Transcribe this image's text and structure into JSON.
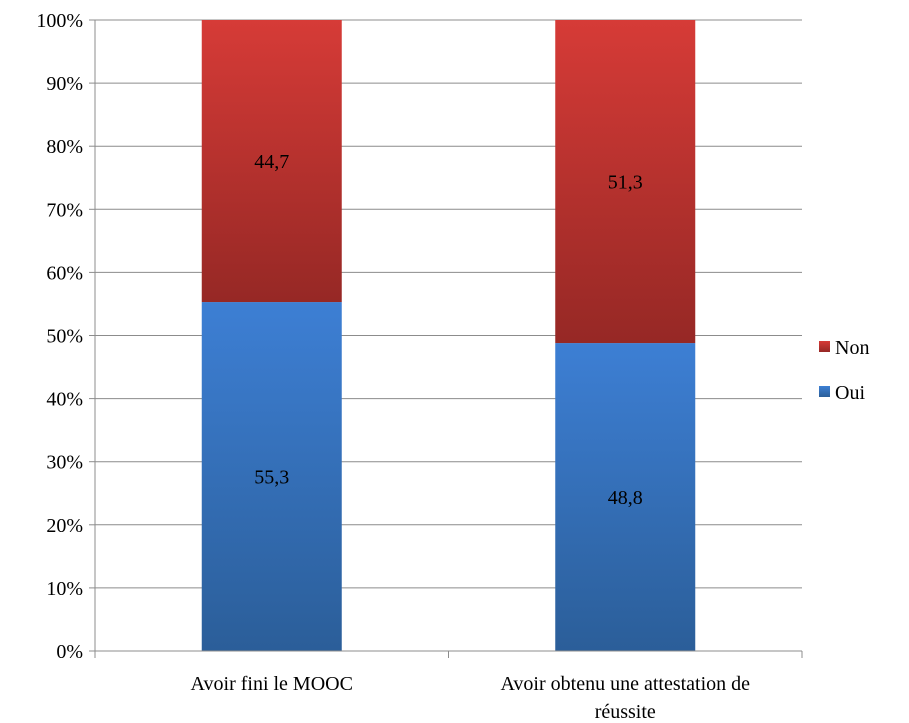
{
  "chart_data": {
    "type": "bar",
    "stacked": true,
    "percent_stacked": true,
    "categories": [
      "Avoir fini le MOOC",
      "Avoir obtenu une attestation de réussite"
    ],
    "category_lines": [
      [
        "Avoir fini le MOOC"
      ],
      [
        "Avoir obtenu une attestation de",
        "réussite"
      ]
    ],
    "series": [
      {
        "name": "Oui",
        "values": [
          55.3,
          48.8
        ],
        "labels": [
          "55,3",
          "48,8"
        ],
        "color_top": "#3d7fd4",
        "color_bottom": "#2b5e99"
      },
      {
        "name": "Non",
        "values": [
          44.7,
          51.3
        ],
        "labels": [
          "44,7",
          "51,3"
        ],
        "color_top": "#d63b37",
        "color_bottom": "#962825"
      }
    ],
    "legend_order": [
      "Non",
      "Oui"
    ],
    "ylim": [
      0,
      100
    ],
    "yticks": [
      0,
      10,
      20,
      30,
      40,
      50,
      60,
      70,
      80,
      90,
      100
    ],
    "ytick_labels": [
      "0%",
      "10%",
      "20%",
      "30%",
      "40%",
      "50%",
      "60%",
      "70%",
      "80%",
      "90%",
      "100%"
    ],
    "grid": true,
    "legend_position": "right",
    "gridline_color": "#8c8c8c"
  }
}
